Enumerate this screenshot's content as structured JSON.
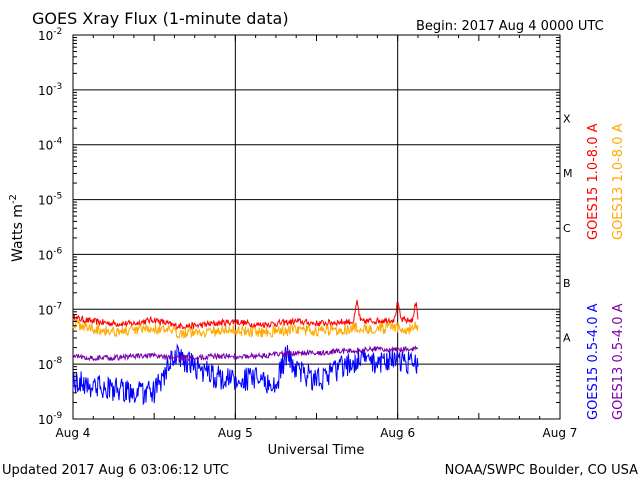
{
  "header": {
    "title": "GOES Xray Flux (1-minute data)",
    "begin": "Begin:  2017 Aug 4 0000 UTC"
  },
  "footer": {
    "updated": "Updated 2017 Aug  6 03:06:12 UTC",
    "credit": "NOAA/SWPC Boulder, CO USA"
  },
  "chart_data": {
    "type": "line",
    "title": "GOES Xray Flux (1-minute data)",
    "xlabel": "Universal Time",
    "ylabel": "Watts m",
    "ylabel_superscript": "-2",
    "y_scale": "log",
    "ylim": [
      1e-09,
      0.01
    ],
    "y_ticks": [
      {
        "value": 0.01,
        "base": "10",
        "exp": "-2"
      },
      {
        "value": 0.001,
        "base": "10",
        "exp": "-3"
      },
      {
        "value": 0.0001,
        "base": "10",
        "exp": "-4"
      },
      {
        "value": 1e-05,
        "base": "10",
        "exp": "-5"
      },
      {
        "value": 1e-06,
        "base": "10",
        "exp": "-6"
      },
      {
        "value": 1e-07,
        "base": "10",
        "exp": "-7"
      },
      {
        "value": 1e-08,
        "base": "10",
        "exp": "-8"
      },
      {
        "value": 1e-09,
        "base": "10",
        "exp": "-9"
      }
    ],
    "xlim": [
      "2017-08-04 00:00",
      "2017-08-07 00:00"
    ],
    "x_ticks": [
      {
        "value": "2017-08-04 00:00",
        "label": "Aug 4"
      },
      {
        "value": "2017-08-05 00:00",
        "label": "Aug 5"
      },
      {
        "value": "2017-08-06 00:00",
        "label": "Aug 6"
      },
      {
        "value": "2017-08-07 00:00",
        "label": "Aug 7"
      }
    ],
    "grid": true,
    "flare_classes": [
      {
        "label": "X",
        "min": 0.0001
      },
      {
        "label": "M",
        "min": 1e-05
      },
      {
        "label": "C",
        "min": 1e-06
      },
      {
        "label": "B",
        "min": 1e-07
      },
      {
        "label": "A",
        "min": 1e-08
      }
    ],
    "series": [
      {
        "name": "GOES15 1.0-8.0 A",
        "color": "#ff0000",
        "x": [
          "2017-08-04 00:00",
          "2017-08-04 03:00",
          "2017-08-04 06:00",
          "2017-08-04 09:00",
          "2017-08-04 12:00",
          "2017-08-04 15:00",
          "2017-08-04 18:00",
          "2017-08-04 21:00",
          "2017-08-05 00:00",
          "2017-08-05 03:00",
          "2017-08-05 06:00",
          "2017-08-05 09:00",
          "2017-08-05 12:00",
          "2017-08-05 15:00",
          "2017-08-05 17:30",
          "2017-08-05 18:00",
          "2017-08-05 18:30",
          "2017-08-05 21:00",
          "2017-08-05 23:30",
          "2017-08-06 00:00",
          "2017-08-06 00:30",
          "2017-08-06 01:30",
          "2017-08-06 02:15",
          "2017-08-06 02:45",
          "2017-08-06 03:00"
        ],
        "y": [
          7e-08,
          6e-08,
          5.5e-08,
          5.5e-08,
          6.5e-08,
          5e-08,
          5e-08,
          5.5e-08,
          6e-08,
          5.2e-08,
          5.5e-08,
          6e-08,
          5.5e-08,
          5.8e-08,
          6e-08,
          1.4e-07,
          6e-08,
          6.2e-08,
          6.5e-08,
          1.3e-07,
          6.5e-08,
          6.2e-08,
          6.5e-08,
          1.5e-07,
          6.5e-08
        ]
      },
      {
        "name": "GOES13 1.0-8.0 A",
        "color": "#ffaa00",
        "x": [
          "2017-08-04 00:00",
          "2017-08-04 03:00",
          "2017-08-04 06:00",
          "2017-08-04 09:00",
          "2017-08-04 12:00",
          "2017-08-04 15:00",
          "2017-08-04 18:00",
          "2017-08-04 21:00",
          "2017-08-05 00:00",
          "2017-08-05 03:00",
          "2017-08-05 06:00",
          "2017-08-05 09:00",
          "2017-08-05 12:00",
          "2017-08-05 15:00",
          "2017-08-05 18:00",
          "2017-08-05 21:00",
          "2017-08-06 00:00",
          "2017-08-06 01:30",
          "2017-08-06 03:00"
        ],
        "y": [
          5.5e-08,
          4.5e-08,
          4e-08,
          4e-08,
          4.5e-08,
          3.8e-08,
          3.8e-08,
          4e-08,
          4.2e-08,
          3.8e-08,
          4e-08,
          4.2e-08,
          4e-08,
          4.2e-08,
          4.5e-08,
          4.5e-08,
          4.5e-08,
          4.2e-08,
          5e-08
        ]
      },
      {
        "name": "GOES15 0.5-4.0 A",
        "color": "#0000ff",
        "x": [
          "2017-08-04 00:00",
          "2017-08-04 03:00",
          "2017-08-04 06:00",
          "2017-08-04 09:00",
          "2017-08-04 12:00",
          "2017-08-04 14:00",
          "2017-08-04 15:00",
          "2017-08-04 18:00",
          "2017-08-04 21:00",
          "2017-08-05 00:00",
          "2017-08-05 03:00",
          "2017-08-05 06:00",
          "2017-08-05 07:30",
          "2017-08-05 09:00",
          "2017-08-05 12:00",
          "2017-08-05 15:00",
          "2017-08-05 18:00",
          "2017-08-05 21:00",
          "2017-08-05 23:00",
          "2017-08-06 00:00",
          "2017-08-06 01:30",
          "2017-08-06 03:00"
        ],
        "y": [
          5e-09,
          4e-09,
          3.5e-09,
          3e-09,
          3e-09,
          8e-09,
          1.5e-08,
          9e-09,
          6e-09,
          5e-09,
          5.5e-09,
          4e-09,
          1.5e-08,
          8e-09,
          5e-09,
          8e-09,
          1.2e-08,
          1.1e-08,
          1.3e-08,
          1e-08,
          1.1e-08,
          9e-09
        ]
      },
      {
        "name": "GOES13 0.5-4.0 A",
        "color": "#7700aa",
        "x": [
          "2017-08-04 00:00",
          "2017-08-04 03:00",
          "2017-08-04 06:00",
          "2017-08-04 09:00",
          "2017-08-04 12:00",
          "2017-08-04 15:00",
          "2017-08-04 18:00",
          "2017-08-04 21:00",
          "2017-08-05 00:00",
          "2017-08-05 03:00",
          "2017-08-05 06:00",
          "2017-08-05 09:00",
          "2017-08-05 12:00",
          "2017-08-05 15:00",
          "2017-08-05 18:00",
          "2017-08-05 21:00",
          "2017-08-06 00:00",
          "2017-08-06 01:30",
          "2017-08-06 03:00"
        ],
        "y": [
          1.4e-08,
          1.3e-08,
          1.3e-08,
          1.4e-08,
          1.4e-08,
          1.3e-08,
          1.3e-08,
          1.4e-08,
          1.4e-08,
          1.4e-08,
          1.5e-08,
          1.6e-08,
          1.6e-08,
          1.7e-08,
          1.8e-08,
          1.9e-08,
          1.8e-08,
          1.9e-08,
          1.9e-08
        ]
      }
    ]
  }
}
